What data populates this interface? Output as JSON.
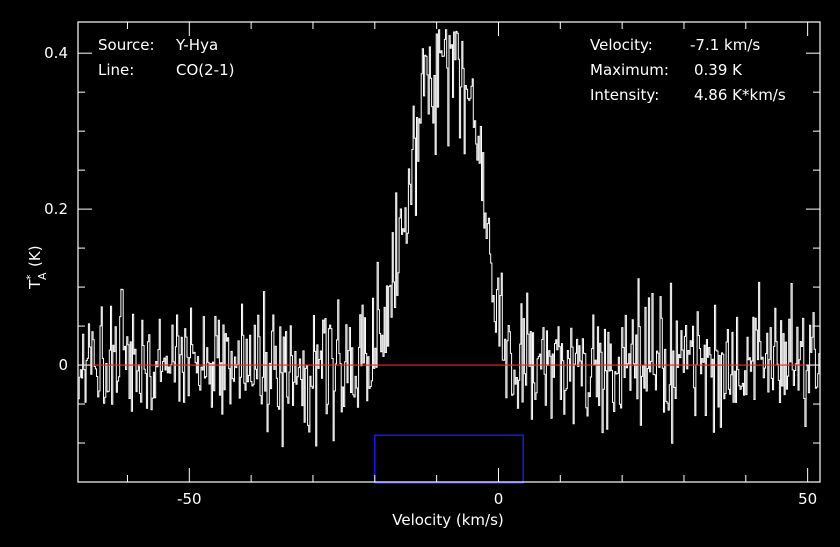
{
  "colors": {
    "background": "#000000",
    "foreground": "#ffffff",
    "baseline": "#ff2020",
    "window": "#1a1aff"
  },
  "info": {
    "source_label": "Source:",
    "source_value": "Y-Hya",
    "line_label": "Line:",
    "line_value": "CO(2-1)",
    "velocity_label": "Velocity:",
    "velocity_value": "-7.1 km/s",
    "maximum_label": "Maximum:",
    "maximum_value": "0.39 K",
    "intensity_label": "Intensity:",
    "intensity_value": "4.86 K*km/s"
  },
  "chart_data": {
    "type": "line",
    "title": "",
    "xlabel": "Velocity (km/s)",
    "ylabel_main": "T",
    "ylabel_sup": "*",
    "ylabel_sub": "A",
    "ylabel_unit": "(K)",
    "xlim": [
      -68,
      52
    ],
    "ylim": [
      -0.15,
      0.44
    ],
    "x_ticks": [
      -50,
      0,
      50
    ],
    "x_tick_labels": [
      "-50",
      "0",
      "50"
    ],
    "y_ticks": [
      0,
      0.2,
      0.4
    ],
    "y_tick_labels": [
      "0",
      "0.2",
      "0.4"
    ],
    "grid": false,
    "baseline": 0,
    "window": {
      "x": [
        -20,
        4
      ],
      "y": [
        -0.15,
        -0.09
      ]
    },
    "series": [
      {
        "profile": {
          "x": [
            -68,
            -20,
            -19,
            -18,
            -17.5,
            -16.5,
            -16,
            -15,
            -14,
            -13,
            -12,
            -11,
            -10,
            -9,
            -8,
            -7,
            -6,
            -5,
            -4,
            -3,
            -2,
            -1,
            0,
            1,
            2,
            52
          ],
          "values": [
            0,
            0,
            0.03,
            0.06,
            0.08,
            0.13,
            0.15,
            0.2,
            0.25,
            0.3,
            0.34,
            0.36,
            0.37,
            0.38,
            0.38,
            0.38,
            0.37,
            0.36,
            0.34,
            0.28,
            0.2,
            0.12,
            0.06,
            0.02,
            0,
            0
          ]
        },
        "noise_rms": 0.04
      }
    ]
  }
}
